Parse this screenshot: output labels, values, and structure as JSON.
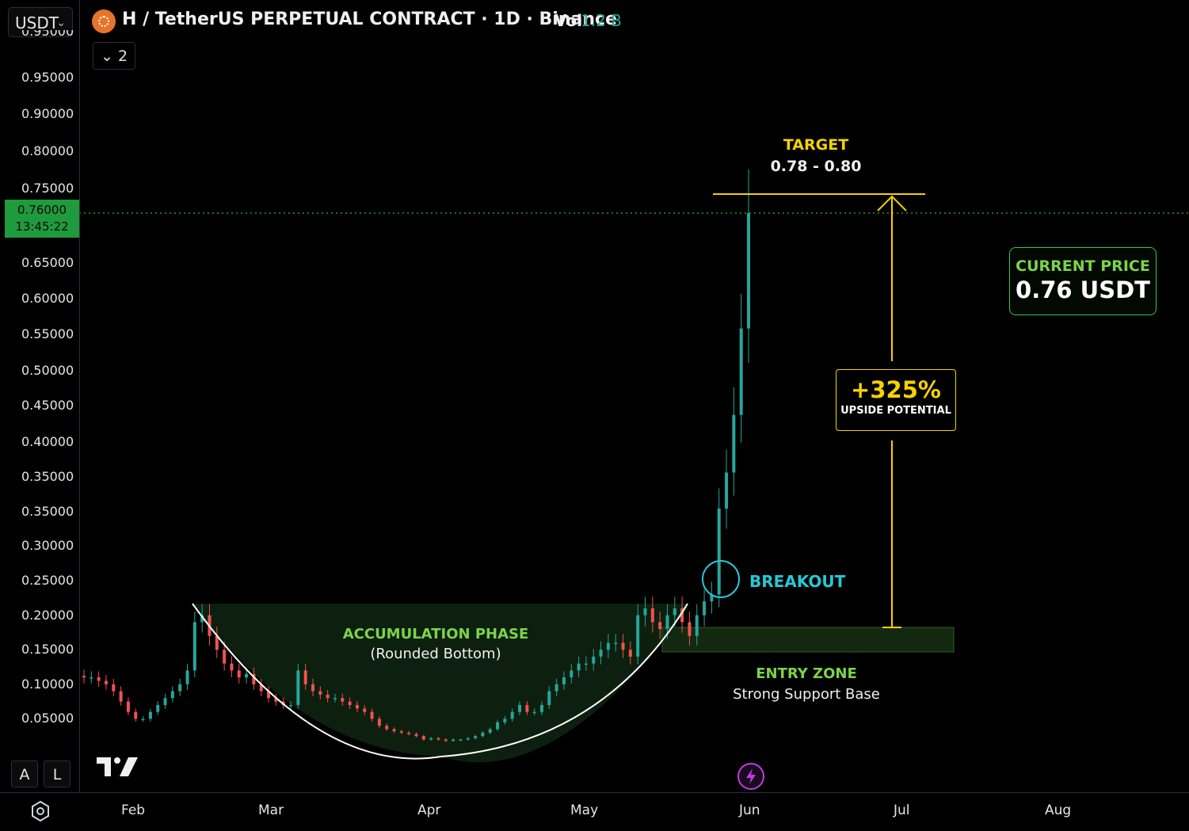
{
  "header": {
    "currency": "USDT",
    "title": "H / TetherUS PERPETUAL CONTRACT · 1D · Binance",
    "vol_label": "Vol",
    "vol_value": "1.2 B",
    "indicator_count": "2"
  },
  "price_axis": {
    "partial_top_tick": "0.95000",
    "ticks": [
      "0.95000",
      "0.90000",
      "0.80000",
      "0.75000",
      "0.65000",
      "0.60000",
      "0.55000",
      "0.50000",
      "0.45000",
      "0.40000",
      "0.35000",
      "0.35000",
      "0.30000",
      "0.25000",
      "0.20000",
      "0.15000",
      "0.10000",
      "0.05000"
    ],
    "current_price": "0.76000",
    "countdown": "13:45:22"
  },
  "time_axis": {
    "months": [
      "Feb",
      "Mar",
      "Apr",
      "May",
      "Jun",
      "Jul",
      "Aug"
    ]
  },
  "scale_buttons": {
    "auto": "A",
    "log": "L"
  },
  "annotations": {
    "target_title": "TARGET",
    "target_range": "0.78 - 0.80",
    "current_price_label": "CURRENT PRICE",
    "current_price_value": "0.76 USDT",
    "upside_pct": "+325%",
    "upside_label": "UPSIDE POTENTIAL",
    "breakout": "BREAKOUT",
    "accumulation_title": "ACCUMULATION PHASE",
    "accumulation_sub": "(Rounded Bottom)",
    "entry_title": "ENTRY ZONE",
    "entry_sub": "Strong Support Base"
  },
  "icons": {
    "settings": "gear-icon",
    "logo": "tradingview-logo",
    "bolt": "lightning-icon",
    "symbol": "h-coin-icon"
  },
  "colors": {
    "up": "#26a69a",
    "down": "#ef5350",
    "accent_green": "#7bd44a",
    "target_yellow": "#f5d200",
    "breakout_cyan": "#28c7d4",
    "price_line": "#1f9a3c"
  },
  "chart_data": {
    "type": "candlestick",
    "symbol": "H / TetherUS PERPETUAL CONTRACT",
    "interval": "1D",
    "exchange": "Binance",
    "current_price": 0.76,
    "target_range": [
      0.78,
      0.8
    ],
    "upside_potential_pct": 325,
    "ylim": [
      0.03,
      0.97
    ],
    "approx_closes": [
      0.11,
      0.11,
      0.105,
      0.1,
      0.09,
      0.075,
      0.06,
      0.05,
      0.05,
      0.06,
      0.07,
      0.08,
      0.09,
      0.1,
      0.12,
      0.19,
      0.2,
      0.17,
      0.15,
      0.13,
      0.12,
      0.11,
      0.115,
      0.1,
      0.09,
      0.08,
      0.075,
      0.07,
      0.07,
      0.12,
      0.1,
      0.09,
      0.085,
      0.08,
      0.08,
      0.075,
      0.07,
      0.065,
      0.06,
      0.05,
      0.04,
      0.035,
      0.032,
      0.03,
      0.028,
      0.025,
      0.02,
      0.022,
      0.02,
      0.018,
      0.02,
      0.02,
      0.022,
      0.025,
      0.03,
      0.035,
      0.045,
      0.05,
      0.06,
      0.07,
      0.06,
      0.06,
      0.07,
      0.09,
      0.1,
      0.11,
      0.12,
      0.13,
      0.13,
      0.14,
      0.15,
      0.16,
      0.16,
      0.15,
      0.14,
      0.2,
      0.21,
      0.19,
      0.18,
      0.2,
      0.21,
      0.19,
      0.17,
      0.2,
      0.22,
      0.23,
      0.35,
      0.4,
      0.48,
      0.6,
      0.76
    ]
  }
}
